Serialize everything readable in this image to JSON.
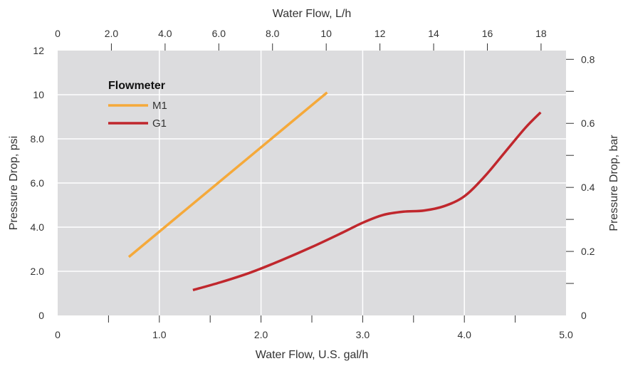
{
  "chart_data": {
    "type": "line",
    "title": "",
    "xlabel": "Water Flow, U.S. gal/h",
    "ylabel": "Pressure Drop, psi",
    "x2label": "Water Flow, L/h",
    "y2label": "Pressure Drop, bar",
    "xlim": [
      0,
      5.0
    ],
    "ylim": [
      0,
      12
    ],
    "x2lim": [
      0,
      18.93
    ],
    "y2lim": [
      0,
      0.8274
    ],
    "x_ticks": [
      {
        "v": 0,
        "label": "0"
      },
      {
        "v": 0.5,
        "label": ""
      },
      {
        "v": 1.0,
        "label": "1.0"
      },
      {
        "v": 1.5,
        "label": ""
      },
      {
        "v": 2.0,
        "label": "2.0"
      },
      {
        "v": 2.5,
        "label": ""
      },
      {
        "v": 3.0,
        "label": "3.0"
      },
      {
        "v": 3.5,
        "label": ""
      },
      {
        "v": 4.0,
        "label": "4.0"
      },
      {
        "v": 4.5,
        "label": ""
      },
      {
        "v": 5.0,
        "label": "5.0"
      }
    ],
    "y_ticks": [
      {
        "v": 0,
        "label": "0"
      },
      {
        "v": 2.0,
        "label": "2.0"
      },
      {
        "v": 4.0,
        "label": "4.0"
      },
      {
        "v": 6.0,
        "label": "6.0"
      },
      {
        "v": 8.0,
        "label": "8.0"
      },
      {
        "v": 10,
        "label": "10"
      },
      {
        "v": 12,
        "label": "12"
      }
    ],
    "x2_ticks": [
      {
        "v": 0,
        "label": "0"
      },
      {
        "v": 2.0,
        "label": "2.0"
      },
      {
        "v": 4.0,
        "label": "4.0"
      },
      {
        "v": 6.0,
        "label": "6.0"
      },
      {
        "v": 8.0,
        "label": "8.0"
      },
      {
        "v": 10,
        "label": "10"
      },
      {
        "v": 12,
        "label": "12"
      },
      {
        "v": 14,
        "label": "14"
      },
      {
        "v": 16,
        "label": "16"
      },
      {
        "v": 18,
        "label": "18"
      }
    ],
    "y2_ticks": [
      {
        "v": 0,
        "label": "0"
      },
      {
        "v": 0.1,
        "label": ""
      },
      {
        "v": 0.2,
        "label": "0.2"
      },
      {
        "v": 0.3,
        "label": ""
      },
      {
        "v": 0.4,
        "label": "0.4"
      },
      {
        "v": 0.5,
        "label": ""
      },
      {
        "v": 0.6,
        "label": "0.6"
      },
      {
        "v": 0.7,
        "label": ""
      },
      {
        "v": 0.8,
        "label": "0.8"
      }
    ],
    "grid_x": [
      1.0,
      2.0,
      3.0,
      4.0
    ],
    "grid_y": [
      2.0,
      4.0,
      6.0,
      8.0,
      10
    ],
    "legend": {
      "title": "Flowmeter",
      "placement": "top-left"
    },
    "series": [
      {
        "name": "M1",
        "color": "#f5a93a",
        "x": [
          0.7,
          2.65
        ],
        "y": [
          2.65,
          10.1
        ]
      },
      {
        "name": "G1",
        "color": "#c0272d",
        "x": [
          1.33,
          1.6,
          1.9,
          2.2,
          2.5,
          2.8,
          3.0,
          3.2,
          3.4,
          3.6,
          3.8,
          4.0,
          4.2,
          4.4,
          4.6,
          4.75
        ],
        "y": [
          1.15,
          1.5,
          1.95,
          2.5,
          3.1,
          3.75,
          4.2,
          4.55,
          4.7,
          4.75,
          4.95,
          5.4,
          6.3,
          7.4,
          8.5,
          9.2
        ]
      }
    ],
    "background": "#dcdcde",
    "grid_color": "#ffffff"
  }
}
